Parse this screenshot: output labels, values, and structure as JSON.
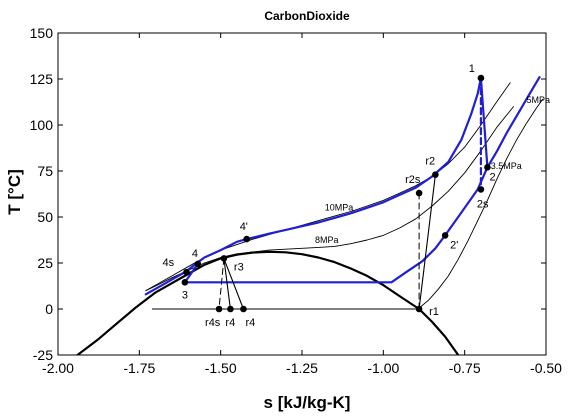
{
  "chart_data": {
    "type": "line",
    "title": "CarbonDioxide",
    "xlabel": "s [kJ/kg-K]",
    "ylabel": "T [°C]",
    "xlim": [
      -2.0,
      -0.5
    ],
    "ylim": [
      -25,
      150
    ],
    "xticks": [
      -2.0,
      -1.75,
      -1.5,
      -1.25,
      -1.0,
      -0.75,
      -0.5
    ],
    "xtick_labels": [
      "-2.00",
      "-1.75",
      "-1.50",
      "-1.25",
      "-1.00",
      "-0.75",
      "-0.50"
    ],
    "yticks": [
      -25,
      0,
      25,
      50,
      75,
      100,
      125,
      150
    ],
    "ytick_labels": [
      "-25",
      "0",
      "25",
      "50",
      "75",
      "100",
      "125",
      "150"
    ],
    "grid": false,
    "series": [
      {
        "name": "",
        "color": "#000000",
        "width": 2.2,
        "style": "solid",
        "points": [
          [
            -1.94,
            -25
          ],
          [
            -1.88,
            -17
          ],
          [
            -1.82,
            -8
          ],
          [
            -1.76,
            1
          ],
          [
            -1.7,
            9
          ],
          [
            -1.65,
            14
          ],
          [
            -1.6,
            19
          ],
          [
            -1.55,
            24
          ],
          [
            -1.5,
            27.5
          ],
          [
            -1.45,
            29.5
          ],
          [
            -1.4,
            30.7
          ],
          [
            -1.35,
            31.1
          ],
          [
            -1.3,
            30.8
          ],
          [
            -1.25,
            29.8
          ],
          [
            -1.2,
            28
          ],
          [
            -1.15,
            25.5
          ],
          [
            -1.1,
            22
          ],
          [
            -1.05,
            18
          ],
          [
            -1.0,
            13
          ],
          [
            -0.95,
            7
          ],
          [
            -0.89,
            0
          ],
          [
            -0.85,
            -7
          ],
          [
            -0.81,
            -15
          ],
          [
            -0.77,
            -25
          ]
        ]
      },
      {
        "name": "",
        "color": "#000000",
        "width": 0.9,
        "style": "solid",
        "points": [
          [
            -1.71,
            0
          ],
          [
            -0.89,
            0
          ]
        ]
      },
      {
        "name": "10MPa",
        "color": "#000000",
        "width": 0.9,
        "style": "solid",
        "points": [
          [
            -1.73,
            10
          ],
          [
            -1.7,
            13
          ],
          [
            -1.65,
            18
          ],
          [
            -1.6,
            23
          ],
          [
            -1.55,
            28
          ],
          [
            -1.5,
            32
          ],
          [
            -1.45,
            35
          ],
          [
            -1.4,
            38
          ],
          [
            -1.35,
            40.5
          ],
          [
            -1.3,
            43
          ],
          [
            -1.25,
            45.5
          ],
          [
            -1.2,
            48
          ],
          [
            -1.15,
            50.5
          ],
          [
            -1.1,
            53
          ],
          [
            -1.05,
            56
          ],
          [
            -1.0,
            59
          ],
          [
            -0.95,
            63
          ],
          [
            -0.9,
            67
          ],
          [
            -0.85,
            72
          ],
          [
            -0.8,
            79
          ],
          [
            -0.75,
            88
          ],
          [
            -0.7,
            100
          ],
          [
            -0.65,
            113
          ],
          [
            -0.61,
            123
          ]
        ]
      },
      {
        "name": "8MPa",
        "color": "#000000",
        "width": 0.9,
        "style": "solid",
        "points": [
          [
            -1.73,
            10
          ],
          [
            -1.7,
            12.5
          ],
          [
            -1.65,
            17
          ],
          [
            -1.6,
            21
          ],
          [
            -1.55,
            25
          ],
          [
            -1.5,
            28
          ],
          [
            -1.45,
            30
          ],
          [
            -1.4,
            31
          ],
          [
            -1.35,
            32
          ],
          [
            -1.3,
            32.5
          ],
          [
            -1.25,
            33
          ],
          [
            -1.2,
            33.5
          ],
          [
            -1.15,
            34
          ],
          [
            -1.1,
            35.5
          ],
          [
            -1.05,
            37.5
          ],
          [
            -1.0,
            40
          ],
          [
            -0.95,
            44
          ],
          [
            -0.9,
            49
          ],
          [
            -0.85,
            56
          ],
          [
            -0.8,
            64
          ],
          [
            -0.75,
            74
          ],
          [
            -0.7,
            86
          ],
          [
            -0.65,
            99
          ],
          [
            -0.6,
            110
          ]
        ]
      },
      {
        "name": "3.5MPa",
        "color": "#000000",
        "width": 0.9,
        "style": "solid",
        "points": [
          [
            -0.89,
            0.5
          ],
          [
            -0.86,
            5
          ],
          [
            -0.83,
            11
          ],
          [
            -0.8,
            18
          ],
          [
            -0.77,
            27
          ],
          [
            -0.74,
            37
          ],
          [
            -0.71,
            48
          ],
          [
            -0.68,
            59
          ],
          [
            -0.65,
            71
          ],
          [
            -0.62,
            82
          ],
          [
            -0.59,
            92
          ],
          [
            -0.56,
            101
          ],
          [
            -0.53,
            109
          ],
          [
            -0.51,
            114
          ]
        ]
      },
      {
        "name": "",
        "color": "#1f1fd6",
        "width": 2.2,
        "style": "solid",
        "points": [
          [
            -1.73,
            8
          ],
          [
            -1.7,
            11
          ],
          [
            -1.65,
            16
          ],
          [
            -1.61,
            20
          ],
          [
            -1.58,
            24
          ],
          [
            -1.55,
            28
          ],
          [
            -1.5,
            32
          ],
          [
            -1.45,
            36.5
          ],
          [
            -1.42,
            38
          ],
          [
            -1.35,
            41
          ],
          [
            -1.3,
            43
          ],
          [
            -1.25,
            45
          ],
          [
            -1.2,
            47
          ],
          [
            -1.15,
            49.5
          ],
          [
            -1.1,
            52
          ],
          [
            -1.05,
            55
          ],
          [
            -1.0,
            58
          ],
          [
            -0.95,
            62
          ],
          [
            -0.9,
            66
          ],
          [
            -0.85,
            72
          ],
          [
            -0.8,
            80
          ],
          [
            -0.76,
            92
          ],
          [
            -0.73,
            106
          ],
          [
            -0.71,
            117
          ],
          [
            -0.7,
            125.5
          ]
        ]
      },
      {
        "name": "5MPa",
        "color": "#1f1fd6",
        "width": 2.2,
        "style": "solid",
        "points": [
          [
            -1.61,
            14.5
          ],
          [
            -0.975,
            14.5
          ],
          [
            -0.93,
            20
          ],
          [
            -0.88,
            26
          ],
          [
            -0.84,
            33
          ],
          [
            -0.81,
            40
          ],
          [
            -0.77,
            50
          ],
          [
            -0.73,
            60
          ],
          [
            -0.71,
            65
          ],
          [
            -0.68,
            77
          ],
          [
            -0.65,
            86
          ],
          [
            -0.62,
            96
          ],
          [
            -0.58,
            108
          ],
          [
            -0.55,
            117
          ],
          [
            -0.52,
            126
          ]
        ]
      },
      {
        "name": "",
        "color": "#1f1fd6",
        "width": 2.2,
        "style": "solid",
        "points": [
          [
            -1.61,
            14.5
          ],
          [
            -1.57,
            24.5
          ]
        ]
      },
      {
        "name": "",
        "color": "#1f1fd6",
        "width": 2.2,
        "style": "solid",
        "points": [
          [
            -0.7,
            125.5
          ],
          [
            -0.68,
            77
          ]
        ]
      },
      {
        "name": "",
        "color": "#1f1fd6",
        "width": 2.2,
        "style": "dashed",
        "points": [
          [
            -0.7,
            125.5
          ],
          [
            -0.7,
            65
          ]
        ]
      },
      {
        "name": "",
        "color": "#000000",
        "width": 1.1,
        "style": "solid",
        "points": [
          [
            -0.89,
            0
          ],
          [
            -0.84,
            73
          ]
        ]
      },
      {
        "name": "",
        "color": "#000000",
        "width": 1.0,
        "style": "dashed",
        "points": [
          [
            -0.89,
            0
          ],
          [
            -0.89,
            63
          ]
        ]
      },
      {
        "name": "",
        "color": "#000000",
        "width": 1.1,
        "style": "solid",
        "points": [
          [
            -1.49,
            27.5
          ],
          [
            -1.43,
            0
          ]
        ]
      },
      {
        "name": "",
        "color": "#000000",
        "width": 1.1,
        "style": "solid",
        "points": [
          [
            -1.49,
            27.5
          ],
          [
            -1.47,
            0
          ]
        ]
      },
      {
        "name": "",
        "color": "#000000",
        "width": 1.0,
        "style": "dashed",
        "points": [
          [
            -1.49,
            27.5
          ],
          [
            -1.505,
            0
          ]
        ]
      }
    ],
    "points": [
      {
        "label": "1",
        "x": -0.7,
        "y": 125.5,
        "label_dx": -6,
        "label_dy": -6,
        "anchor": "end"
      },
      {
        "label": "2",
        "x": -0.68,
        "y": 77,
        "label_dx": 2,
        "label_dy": 13,
        "anchor": "start"
      },
      {
        "label": "2s",
        "x": -0.7,
        "y": 65,
        "label_dx": -4,
        "label_dy": 18,
        "anchor": "start"
      },
      {
        "label": "2'",
        "x": -0.81,
        "y": 40,
        "label_dx": 5,
        "label_dy": 13,
        "anchor": "start"
      },
      {
        "label": "r1",
        "x": -0.89,
        "y": 0,
        "label_dx": 10,
        "label_dy": 6,
        "anchor": "start"
      },
      {
        "label": "r2",
        "x": -0.84,
        "y": 73,
        "label_dx": -10,
        "label_dy": -10,
        "anchor": "start"
      },
      {
        "label": "r2s",
        "x": -0.89,
        "y": 63,
        "label_dx": -14,
        "label_dy": -10,
        "anchor": "start"
      },
      {
        "label": "3",
        "x": -1.61,
        "y": 14.5,
        "label_dx": -3,
        "label_dy": 16,
        "anchor": "start"
      },
      {
        "label": "4",
        "x": -1.57,
        "y": 24.5,
        "label_dx": -6,
        "label_dy": -7,
        "anchor": "start"
      },
      {
        "label": "4s",
        "x": -1.605,
        "y": 20,
        "label_dx": -24,
        "label_dy": -6,
        "anchor": "start"
      },
      {
        "label": "4'",
        "x": -1.42,
        "y": 38,
        "label_dx": -7,
        "label_dy": -9,
        "anchor": "start"
      },
      {
        "label": "r3",
        "x": -1.49,
        "y": 27.5,
        "label_dx": 10,
        "label_dy": 12,
        "anchor": "start"
      },
      {
        "label": "r4s",
        "x": -1.505,
        "y": 0,
        "label_dx": -14,
        "label_dy": 17,
        "anchor": "start"
      },
      {
        "label": "r4",
        "x": -1.47,
        "y": 0,
        "label_dx": -5,
        "label_dy": 17,
        "anchor": "start"
      },
      {
        "label": "r4",
        "x": -1.43,
        "y": 0,
        "label_dx": 2,
        "label_dy": 17,
        "anchor": "start"
      }
    ],
    "annotations": [
      {
        "text": "5MPa",
        "x": -0.56,
        "y": 112
      },
      {
        "text": "3.5MPa",
        "x": -0.67,
        "y": 76
      },
      {
        "text": "10MPa",
        "x": -1.18,
        "y": 53.5
      },
      {
        "text": "8MPa",
        "x": -1.21,
        "y": 36
      }
    ]
  }
}
